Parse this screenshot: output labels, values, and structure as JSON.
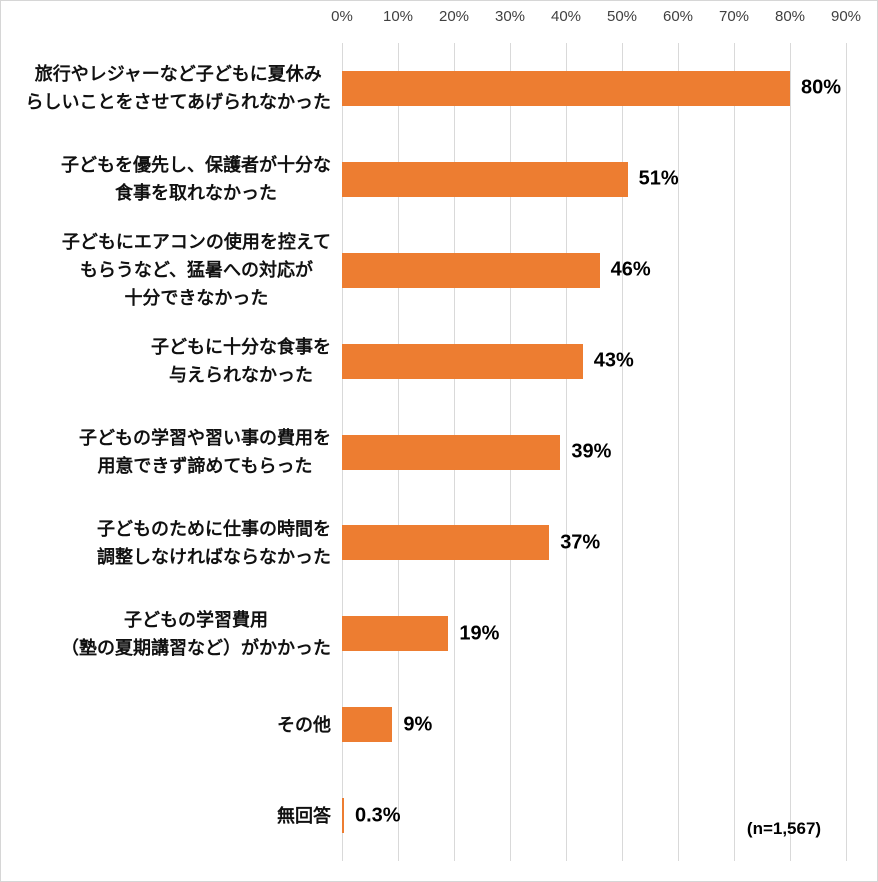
{
  "chart_data": {
    "type": "bar",
    "orientation": "horizontal",
    "title": "",
    "categories": [
      "旅行やレジャーなど子どもに夏休み\nらしいことをさせてあげられなかった",
      "子どもを優先し、保護者が十分な\n食事を取れなかった",
      "子どもにエアコンの使用を控えて\nもらうなど、猛暑への対応が\n十分できなかった",
      "子どもに十分な食事を\n与えられなかった",
      "子どもの学習や習い事の費用を\n用意できず諦めてもらった",
      "子どものために仕事の時間を\n調整しなければならなかった",
      "子どもの学習費用\n（塾の夏期講習など）がかかった",
      "その他",
      "無回答"
    ],
    "values": [
      80,
      51,
      46,
      43,
      39,
      37,
      19,
      9,
      0.3
    ],
    "value_labels": [
      "80%",
      "51%",
      "46%",
      "43%",
      "39%",
      "37%",
      "19%",
      "9%",
      "0.3%"
    ],
    "x_axis": {
      "position": "top",
      "min": 0,
      "max": 90,
      "tick_step": 10,
      "ticks": [
        "0%",
        "10%",
        "20%",
        "30%",
        "40%",
        "50%",
        "60%",
        "70%",
        "80%",
        "90%"
      ]
    },
    "grid": true,
    "legend": false,
    "annotation": "(n=1,567)",
    "colors": {
      "bar": "#ED7D31",
      "gridline": "#d9d9d9",
      "tick_text": "#404040",
      "label_text": "#111111"
    }
  }
}
